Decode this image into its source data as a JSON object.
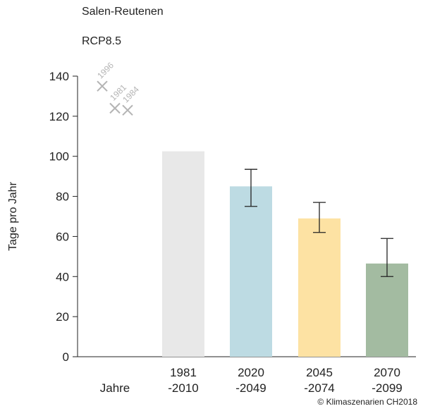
{
  "chart_data": {
    "type": "bar",
    "title": "Salen-Reutenen",
    "subtitle": "RCP8.5",
    "ylabel": "Tage pro Jahr",
    "xlabel": "Jahre",
    "ylim": [
      0,
      140
    ],
    "yticks": [
      0,
      20,
      40,
      60,
      80,
      100,
      120,
      140
    ],
    "categories": [
      [
        "1981",
        "-2010"
      ],
      [
        "2020",
        "-2049"
      ],
      [
        "2045",
        "-2074"
      ],
      [
        "2070",
        "-2099"
      ]
    ],
    "values": [
      102.5,
      85,
      69,
      46.5
    ],
    "error_low": [
      null,
      75,
      62,
      40
    ],
    "error_high": [
      null,
      93.5,
      77,
      59
    ],
    "colors": [
      "#e8e8e8",
      "#bddbe3",
      "#fde2a3",
      "#a3bba1"
    ],
    "observed_years": [
      {
        "label": "1996",
        "value": 135
      },
      {
        "label": "1981",
        "value": 124
      },
      {
        "label": "1984",
        "value": 123
      }
    ],
    "observed_color": "#b4b4b4",
    "grid": false,
    "copyright": "© Klimaszenarien CH2018"
  }
}
